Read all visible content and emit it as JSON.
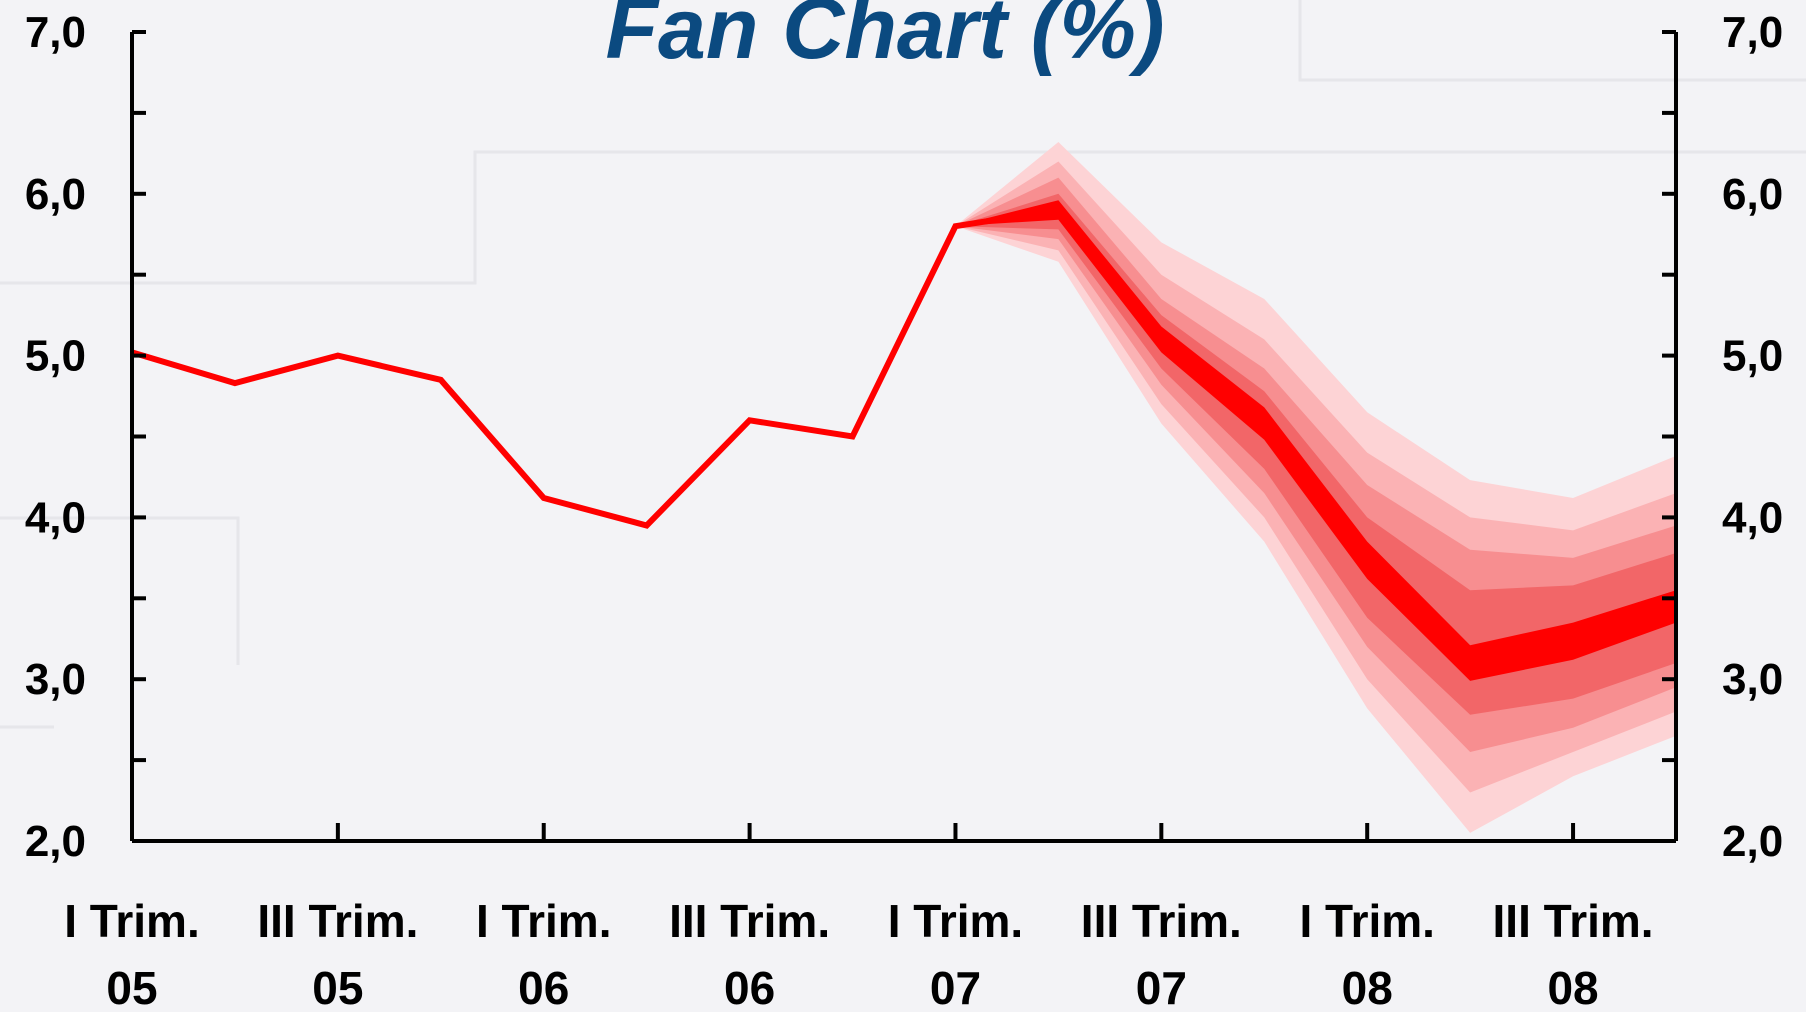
{
  "chart_data": {
    "type": "fan",
    "title": "Fan Chart (%)",
    "categories": [
      [
        "I Trim.",
        "05"
      ],
      null,
      [
        "III Trim.",
        "05"
      ],
      null,
      [
        "I Trim.",
        "06"
      ],
      null,
      [
        "III Trim.",
        "06"
      ],
      null,
      [
        "I Trim.",
        "07"
      ],
      null,
      [
        "III Trim.",
        "07"
      ],
      null,
      [
        "I Trim.",
        "08"
      ],
      null,
      [
        "III Trim.",
        "08"
      ],
      null
    ],
    "series": [
      {
        "color": "#ff0000",
        "values": [
          5.02,
          4.83,
          5.0,
          4.85,
          4.12,
          3.95,
          4.6,
          4.5,
          5.8,
          5.9,
          5.1,
          4.58,
          3.73,
          3.1,
          3.23,
          3.45
        ]
      }
    ],
    "bands": [
      {
        "color": "#fdd3d5",
        "lower": [
          null,
          null,
          null,
          null,
          null,
          null,
          null,
          null,
          5.8,
          5.58,
          4.58,
          3.85,
          2.82,
          2.05,
          2.4,
          2.65
        ],
        "upper": [
          null,
          null,
          null,
          null,
          null,
          null,
          null,
          null,
          5.8,
          6.32,
          5.7,
          5.35,
          4.65,
          4.23,
          4.12,
          4.38
        ]
      },
      {
        "color": "#fbb2b4",
        "lower": [
          null,
          null,
          null,
          null,
          null,
          null,
          null,
          null,
          5.8,
          5.65,
          4.7,
          4.0,
          3.0,
          2.3,
          2.55,
          2.8
        ],
        "upper": [
          null,
          null,
          null,
          null,
          null,
          null,
          null,
          null,
          5.8,
          6.2,
          5.5,
          5.1,
          4.4,
          4.0,
          3.92,
          4.15
        ]
      },
      {
        "color": "#f78e90",
        "lower": [
          null,
          null,
          null,
          null,
          null,
          null,
          null,
          null,
          5.8,
          5.72,
          4.82,
          4.15,
          3.2,
          2.55,
          2.7,
          2.95
        ],
        "upper": [
          null,
          null,
          null,
          null,
          null,
          null,
          null,
          null,
          5.8,
          6.1,
          5.35,
          4.92,
          4.2,
          3.8,
          3.75,
          3.95
        ]
      },
      {
        "color": "#f26668",
        "lower": [
          null,
          null,
          null,
          null,
          null,
          null,
          null,
          null,
          5.8,
          5.78,
          4.92,
          4.3,
          3.38,
          2.78,
          2.88,
          3.1
        ],
        "upper": [
          null,
          null,
          null,
          null,
          null,
          null,
          null,
          null,
          5.8,
          6.0,
          5.25,
          4.78,
          4.0,
          3.55,
          3.58,
          3.78
        ]
      },
      {
        "color": "#ff0000",
        "lower": [
          null,
          null,
          null,
          null,
          null,
          null,
          null,
          null,
          5.8,
          5.84,
          5.02,
          4.48,
          3.62,
          2.99,
          3.12,
          3.35
        ],
        "upper": [
          null,
          null,
          null,
          null,
          null,
          null,
          null,
          null,
          5.8,
          5.96,
          5.18,
          4.68,
          3.85,
          3.21,
          3.35,
          3.55
        ]
      }
    ],
    "ylim": [
      2,
      7
    ],
    "yticks": [
      {
        "value": 2,
        "label": "2,0"
      },
      {
        "value": 3,
        "label": "3,0"
      },
      {
        "value": 4,
        "label": "4,0"
      },
      {
        "value": 5,
        "label": "5,0"
      },
      {
        "value": 6,
        "label": "6,0"
      },
      {
        "value": 7,
        "label": "7,0"
      }
    ]
  }
}
